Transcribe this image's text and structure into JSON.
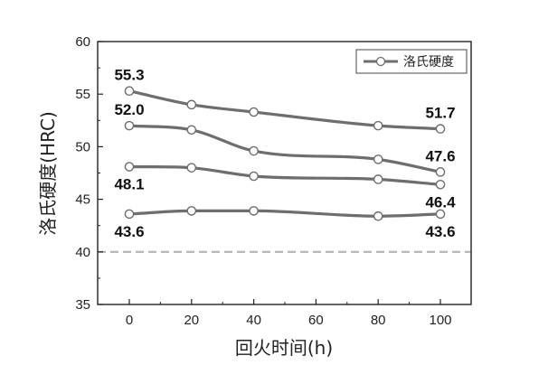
{
  "chart_data": {
    "type": "line",
    "x": [
      0,
      20,
      40,
      60,
      80,
      100
    ],
    "x_ticks": [
      "0",
      "20",
      "40",
      "60",
      "80",
      "100"
    ],
    "y_ticks": [
      "35",
      "40",
      "45",
      "50",
      "55",
      "60"
    ],
    "ylim": [
      35,
      60
    ],
    "xlabel": "回火时间(h)",
    "ylabel": "洛氏硬度(HRC)",
    "grid": false,
    "legend": {
      "label": "洛氏硬度",
      "position": "top-right"
    },
    "reference_line": {
      "y": 40,
      "style": "dashed",
      "color": "#b3b3b3"
    },
    "series_color": "#6e6e6e",
    "series": [
      {
        "x": [
          0,
          20,
          40,
          80,
          100
        ],
        "values": [
          55.3,
          54.0,
          53.3,
          52.0,
          51.7
        ]
      },
      {
        "x": [
          0,
          20,
          40,
          80,
          100
        ],
        "values": [
          52.0,
          51.6,
          49.6,
          48.8,
          47.6
        ]
      },
      {
        "x": [
          0,
          20,
          40,
          80,
          100
        ],
        "values": [
          48.1,
          48.0,
          47.2,
          46.9,
          46.4
        ]
      },
      {
        "x": [
          0,
          20,
          40,
          80,
          100
        ],
        "values": [
          43.6,
          43.9,
          43.9,
          43.4,
          43.6
        ]
      }
    ],
    "data_labels": [
      {
        "text": "55.3",
        "x": 0,
        "y": 55.3,
        "anchor": "above"
      },
      {
        "text": "52.0",
        "x": 0,
        "y": 52.0,
        "anchor": "above"
      },
      {
        "text": "48.1",
        "x": 0,
        "y": 48.1,
        "anchor": "below"
      },
      {
        "text": "43.6",
        "x": 0,
        "y": 43.6,
        "anchor": "below"
      },
      {
        "text": "51.7",
        "x": 100,
        "y": 51.7,
        "anchor": "above"
      },
      {
        "text": "47.6",
        "x": 100,
        "y": 47.6,
        "anchor": "above"
      },
      {
        "text": "46.4",
        "x": 100,
        "y": 46.4,
        "anchor": "below"
      },
      {
        "text": "43.6",
        "x": 100,
        "y": 43.6,
        "anchor": "below"
      }
    ]
  }
}
